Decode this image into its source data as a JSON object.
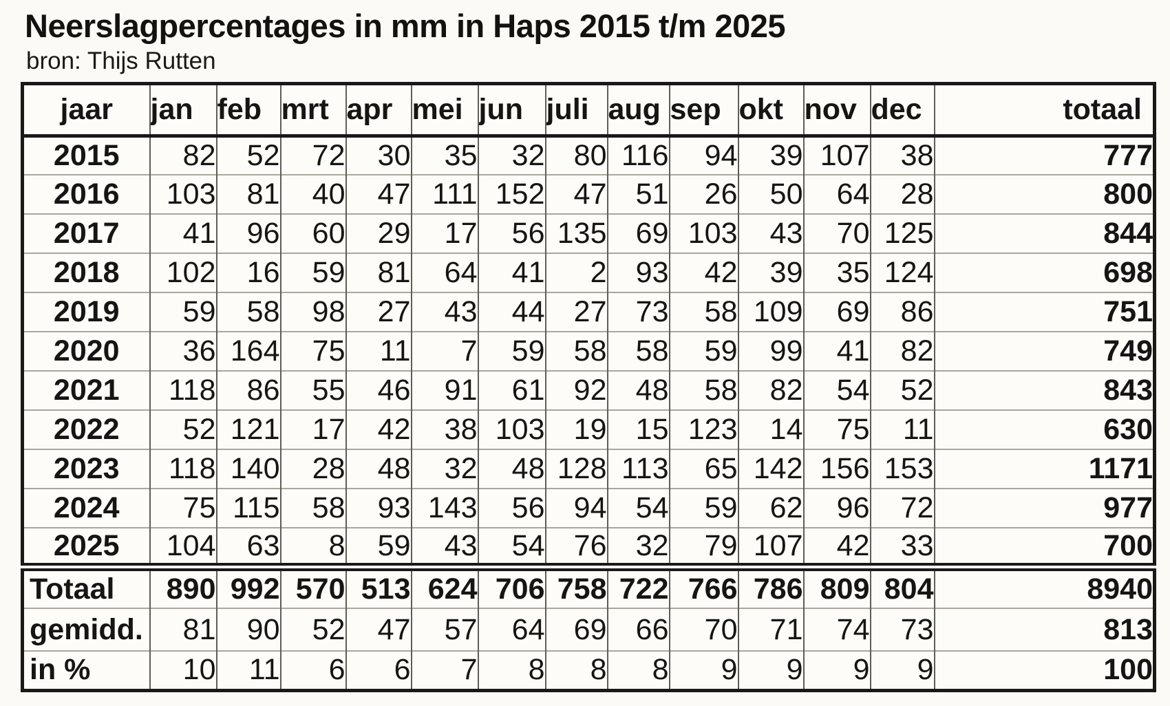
{
  "page": {
    "title": "Neerslagpercentages in mm in Haps 2015 t/m 2025",
    "source": "bron: Thijs Rutten"
  },
  "chart_data": {
    "type": "table",
    "title": "Neerslagpercentages in mm in Haps 2015 t/m 2025",
    "columns": [
      "jaar",
      "jan",
      "feb",
      "mrt",
      "apr",
      "mei",
      "jun",
      "juli",
      "aug",
      "sep",
      "okt",
      "nov",
      "dec",
      "totaal"
    ],
    "rows": [
      {
        "label": "2015",
        "values": [
          82,
          52,
          72,
          30,
          35,
          32,
          80,
          116,
          94,
          39,
          107,
          38
        ],
        "total": 777
      },
      {
        "label": "2016",
        "values": [
          103,
          81,
          40,
          47,
          111,
          152,
          47,
          51,
          26,
          50,
          64,
          28
        ],
        "total": 800
      },
      {
        "label": "2017",
        "values": [
          41,
          96,
          60,
          29,
          17,
          56,
          135,
          69,
          103,
          43,
          70,
          125
        ],
        "total": 844
      },
      {
        "label": "2018",
        "values": [
          102,
          16,
          59,
          81,
          64,
          41,
          2,
          93,
          42,
          39,
          35,
          124
        ],
        "total": 698
      },
      {
        "label": "2019",
        "values": [
          59,
          58,
          98,
          27,
          43,
          44,
          27,
          73,
          58,
          109,
          69,
          86
        ],
        "total": 751
      },
      {
        "label": "2020",
        "values": [
          36,
          164,
          75,
          11,
          7,
          59,
          58,
          58,
          59,
          99,
          41,
          82
        ],
        "total": 749
      },
      {
        "label": "2021",
        "values": [
          118,
          86,
          55,
          46,
          91,
          61,
          92,
          48,
          58,
          82,
          54,
          52
        ],
        "total": 843
      },
      {
        "label": "2022",
        "values": [
          52,
          121,
          17,
          42,
          38,
          103,
          19,
          15,
          123,
          14,
          75,
          11
        ],
        "total": 630
      },
      {
        "label": "2023",
        "values": [
          118,
          140,
          28,
          48,
          32,
          48,
          128,
          113,
          65,
          142,
          156,
          153
        ],
        "total": 1171
      },
      {
        "label": "2024",
        "values": [
          75,
          115,
          58,
          93,
          143,
          56,
          94,
          54,
          59,
          62,
          96,
          72
        ],
        "total": 977
      },
      {
        "label": "2025",
        "values": [
          104,
          63,
          8,
          59,
          43,
          54,
          76,
          32,
          79,
          107,
          42,
          33
        ],
        "total": 700
      }
    ],
    "summary_rows": [
      {
        "label": "Totaal",
        "values": [
          890,
          992,
          570,
          513,
          624,
          706,
          758,
          722,
          766,
          786,
          809,
          804
        ],
        "total": 8940
      },
      {
        "label": "gemidd.",
        "values": [
          81,
          90,
          52,
          47,
          57,
          64,
          69,
          66,
          70,
          71,
          74,
          73
        ],
        "total": 813
      },
      {
        "label": "in %",
        "values": [
          10,
          11,
          6,
          6,
          7,
          8,
          8,
          8,
          9,
          9,
          9,
          9
        ],
        "total": 100
      }
    ]
  }
}
